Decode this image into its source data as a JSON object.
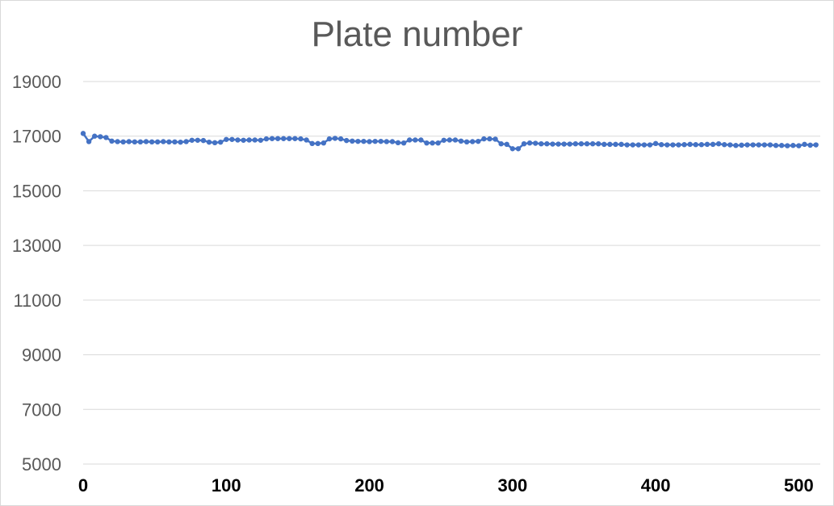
{
  "chart_data": {
    "type": "line",
    "title": "Plate number",
    "xlabel": "",
    "ylabel": "",
    "xlim": [
      0,
      515
    ],
    "ylim": [
      5000,
      19000
    ],
    "xticks": [
      0,
      100,
      200,
      300,
      400,
      500
    ],
    "yticks": [
      5000,
      7000,
      9000,
      11000,
      13000,
      15000,
      17000,
      19000
    ],
    "grid": "horizontal",
    "legend": "none",
    "colors": {
      "series": "#4472c4",
      "grid": "#d9d9d9"
    },
    "series": [
      {
        "x": [
          0,
          4,
          8,
          12,
          16,
          20,
          24,
          28,
          32,
          36,
          40,
          44,
          48,
          52,
          56,
          60,
          64,
          68,
          72,
          76,
          80,
          84,
          88,
          92,
          96,
          100,
          104,
          108,
          112,
          116,
          120,
          124,
          128,
          132,
          136,
          140,
          144,
          148,
          152,
          156,
          160,
          164,
          168,
          172,
          176,
          180,
          184,
          188,
          192,
          196,
          200,
          204,
          208,
          212,
          216,
          220,
          224,
          228,
          232,
          236,
          240,
          244,
          248,
          252,
          256,
          260,
          264,
          268,
          272,
          276,
          280,
          284,
          288,
          292,
          296,
          300,
          304,
          308,
          312,
          316,
          320,
          324,
          328,
          332,
          336,
          340,
          344,
          348,
          352,
          356,
          360,
          364,
          368,
          372,
          376,
          380,
          384,
          388,
          392,
          396,
          400,
          404,
          408,
          412,
          416,
          420,
          424,
          428,
          432,
          436,
          440,
          444,
          448,
          452,
          456,
          460,
          464,
          468,
          472,
          476,
          480,
          484,
          488,
          492,
          496,
          500,
          504,
          508,
          512
        ],
        "y": [
          17100,
          16800,
          17000,
          16980,
          16950,
          16820,
          16800,
          16790,
          16800,
          16790,
          16790,
          16800,
          16790,
          16790,
          16800,
          16790,
          16790,
          16780,
          16800,
          16850,
          16850,
          16840,
          16780,
          16760,
          16780,
          16880,
          16880,
          16860,
          16850,
          16860,
          16860,
          16850,
          16900,
          16910,
          16910,
          16910,
          16910,
          16910,
          16900,
          16860,
          16730,
          16730,
          16750,
          16900,
          16920,
          16900,
          16840,
          16820,
          16810,
          16810,
          16800,
          16810,
          16810,
          16800,
          16800,
          16760,
          16750,
          16860,
          16860,
          16860,
          16750,
          16750,
          16750,
          16850,
          16860,
          16860,
          16820,
          16790,
          16800,
          16810,
          16900,
          16900,
          16890,
          16720,
          16700,
          16540,
          16540,
          16720,
          16750,
          16740,
          16720,
          16720,
          16710,
          16710,
          16710,
          16710,
          16720,
          16720,
          16720,
          16720,
          16720,
          16700,
          16700,
          16700,
          16700,
          16680,
          16680,
          16680,
          16680,
          16680,
          16730,
          16690,
          16680,
          16680,
          16680,
          16690,
          16700,
          16690,
          16690,
          16700,
          16700,
          16720,
          16690,
          16680,
          16660,
          16670,
          16680,
          16680,
          16680,
          16680,
          16680,
          16660,
          16660,
          16650,
          16660,
          16650,
          16700,
          16670,
          16680
        ]
      }
    ]
  }
}
